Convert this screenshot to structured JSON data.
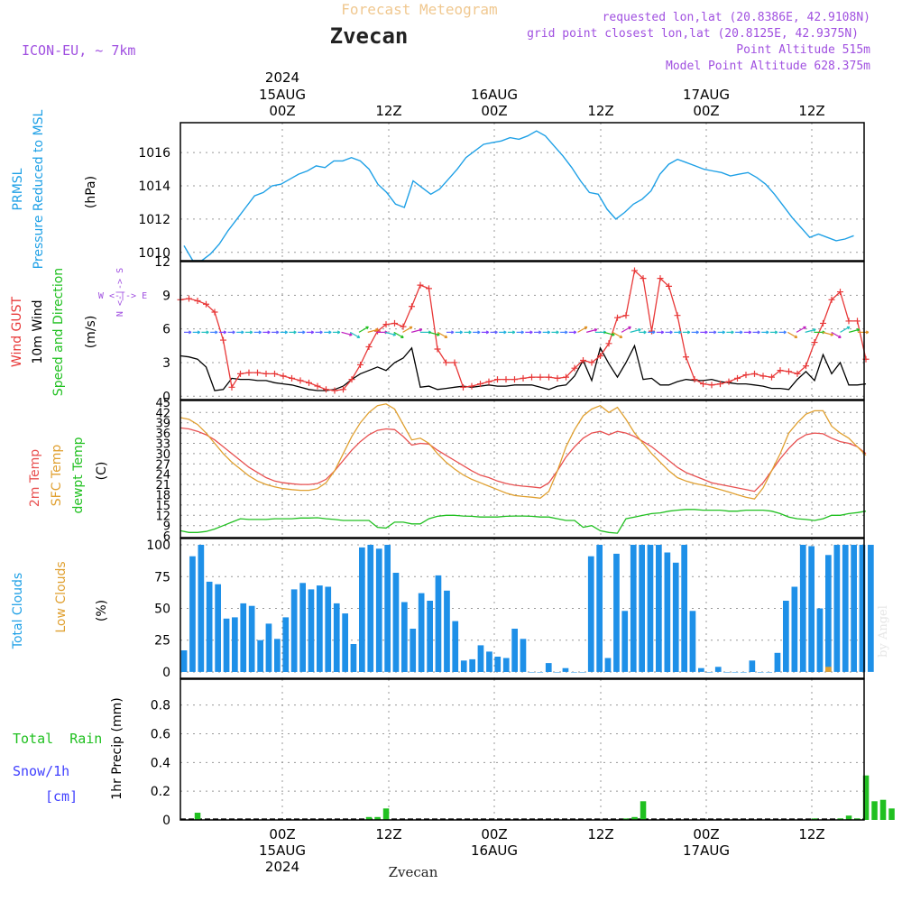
{
  "header": {
    "title": "Forecast Meteogram",
    "location": "Zvecan",
    "model": "ICON-EU, ~ 7km",
    "requested": "requested lon,lat (20.8386E, 42.9108N)",
    "grid_point": "grid point closest lon,lat (20.8125E, 42.9375N)",
    "point_altitude": "Point Altitude 515m",
    "model_altitude": "Model Point Altitude 628.375m",
    "footer_location": "Zvecan",
    "credit": "by Angel"
  },
  "time_axis": {
    "top_year": "2024",
    "top_labels": [
      {
        "line1": "15AUG",
        "line2": "00Z"
      },
      {
        "line1": "",
        "line2": "12Z"
      },
      {
        "line1": "16AUG",
        "line2": "00Z"
      },
      {
        "line1": "",
        "line2": "12Z"
      },
      {
        "line1": "17AUG",
        "line2": "00Z"
      },
      {
        "line1": "",
        "line2": "12Z"
      }
    ],
    "bottom_labels": [
      {
        "line1": "00Z",
        "line2": "15AUG",
        "line3": "2024"
      },
      {
        "line1": "12Z",
        "line2": "",
        "line3": ""
      },
      {
        "line1": "00Z",
        "line2": "16AUG",
        "line3": ""
      },
      {
        "line1": "12Z",
        "line2": "",
        "line3": ""
      },
      {
        "line1": "00Z",
        "line2": "17AUG",
        "line3": ""
      },
      {
        "line1": "12Z",
        "line2": "",
        "line3": ""
      }
    ]
  },
  "panels": {
    "pressure": {
      "label1": "PRMSL",
      "label2": "Pressure Reduced to MSL",
      "unit": "(hPa)"
    },
    "wind": {
      "label1": "Wind GUST",
      "label2": "10m Wind",
      "label3": "Speed and Direction",
      "unit": "(m/s)",
      "compass_ns": "N <-|-> S",
      "compass_we": "W <-|-> E"
    },
    "temp": {
      "label1": "2m Temp",
      "label2": "SFC Temp",
      "label3": "dewpt Temp",
      "unit": "(C)"
    },
    "clouds": {
      "label1": "Total Clouds",
      "label2": "Low Clouds",
      "unit": "(%)"
    },
    "precip": {
      "label1": "Total  Rain",
      "label2": "Snow/1h",
      "label3": "[cm]",
      "unit": "1hr Precip (mm)"
    }
  },
  "colors": {
    "pressure": "#1ea0e6",
    "gust": "#e83838",
    "wind": "#000000",
    "t2m": "#e85050",
    "sfc": "#e0a030",
    "dewpt": "#20c020",
    "total_clouds": "#1e90e8",
    "low_clouds": "#e0a030",
    "rain": "#20c020",
    "snow": "#4040ff",
    "header_title": "#f0c890",
    "header_purple": "#a050e0"
  },
  "chart_data": [
    {
      "type": "line",
      "name": "pressure",
      "x_unit": "hours since 2024-08-14 12Z",
      "ylim": [
        1009.5,
        1017.8
      ],
      "yticks": [
        1010,
        1012,
        1014,
        1016
      ],
      "series": [
        {
          "name": "PRMSL",
          "values": [
            1010.4,
            1009.5,
            1009.5,
            1009.9,
            1010.5,
            1011.3,
            1012.0,
            1012.7,
            1013.4,
            1013.6,
            1014.0,
            1014.1,
            1014.4,
            1014.7,
            1014.9,
            1015.2,
            1015.1,
            1015.5,
            1015.5,
            1015.7,
            1015.5,
            1015.0,
            1014.1,
            1013.6,
            1012.9,
            1012.7,
            1014.3,
            1013.9,
            1013.5,
            1013.8,
            1014.4,
            1015.0,
            1015.7,
            1016.1,
            1016.5,
            1016.6,
            1016.7,
            1016.9,
            1016.8,
            1017.0,
            1017.3,
            1017.0,
            1016.4,
            1015.8,
            1015.1,
            1014.3,
            1013.6,
            1013.5,
            1012.6,
            1012.0,
            1012.4,
            1012.9,
            1013.2,
            1013.7,
            1014.7,
            1015.3,
            1015.6,
            1015.4,
            1015.2,
            1015.0,
            1014.9,
            1014.8,
            1014.6,
            1014.7,
            1014.8,
            1014.5,
            1014.1,
            1013.5,
            1012.8,
            1012.1,
            1011.5,
            1010.9,
            1011.1,
            1010.9,
            1010.7,
            1010.8,
            1011.0
          ]
        }
      ]
    },
    {
      "type": "line",
      "name": "wind",
      "ylim": [
        -0.3,
        12
      ],
      "yticks": [
        0,
        3,
        6,
        9,
        12
      ],
      "series": [
        {
          "name": "Wind GUST",
          "values": [
            8.6,
            8.7,
            8.5,
            8.2,
            7.5,
            5.0,
            0.8,
            2.0,
            2.1,
            2.1,
            2.0,
            2.0,
            1.8,
            1.6,
            1.4,
            1.2,
            0.9,
            0.6,
            0.5,
            0.6,
            1.5,
            2.8,
            4.4,
            5.8,
            6.4,
            6.5,
            6.2,
            8.0,
            9.9,
            9.6,
            4.2,
            3.0,
            3.0,
            0.8,
            0.9,
            1.1,
            1.3,
            1.5,
            1.5,
            1.5,
            1.6,
            1.7,
            1.7,
            1.7,
            1.6,
            1.7,
            2.5,
            3.2,
            3.0,
            3.6,
            4.7,
            7.0,
            7.2,
            11.2,
            10.5,
            5.8,
            10.5,
            9.8,
            7.2,
            3.5,
            1.5,
            1.1,
            1.0,
            1.1,
            1.3,
            1.6,
            1.9,
            2.0,
            1.8,
            1.7,
            2.3,
            2.2,
            2.0,
            2.7,
            4.8,
            6.5,
            8.6,
            9.3,
            6.7,
            6.7,
            3.3
          ]
        },
        {
          "name": "10m Wind",
          "values": [
            3.6,
            3.5,
            3.3,
            2.6,
            0.5,
            0.6,
            1.6,
            1.5,
            1.5,
            1.4,
            1.4,
            1.2,
            1.1,
            1.0,
            0.8,
            0.6,
            0.5,
            0.5,
            0.6,
            0.9,
            1.5,
            2.0,
            2.3,
            2.6,
            2.3,
            3.0,
            3.4,
            4.3,
            0.8,
            0.9,
            0.6,
            0.7,
            0.8,
            0.9,
            0.8,
            0.9,
            1.0,
            0.9,
            0.9,
            1.0,
            1.0,
            1.0,
            0.8,
            0.6,
            0.9,
            1.0,
            1.8,
            3.2,
            1.4,
            4.3,
            2.9,
            1.7,
            3.0,
            4.5,
            1.5,
            1.6,
            1.0,
            1.0,
            1.3,
            1.5,
            1.4,
            1.4,
            1.5,
            1.3,
            1.2,
            1.1,
            1.1,
            1.0,
            0.9,
            0.7,
            0.7,
            0.6,
            1.5,
            2.2,
            1.4,
            3.7,
            2.0,
            3.0,
            1.0,
            1.0,
            1.1
          ]
        }
      ]
    },
    {
      "type": "line",
      "name": "temperature",
      "ylim": [
        5.5,
        45.5
      ],
      "yticks": [
        6,
        9,
        12,
        15,
        18,
        21,
        24,
        27,
        30,
        33,
        36,
        39,
        42,
        45
      ],
      "series": [
        {
          "name": "2m Temp",
          "values": [
            37.5,
            37.2,
            36.5,
            35.5,
            34.0,
            32.0,
            30.0,
            28.0,
            26.0,
            24.5,
            23.0,
            22.0,
            21.5,
            21.2,
            21.0,
            21.0,
            21.3,
            22.5,
            25.0,
            28.0,
            31.0,
            33.5,
            35.5,
            36.8,
            37.2,
            37.0,
            35.0,
            32.5,
            33.0,
            32.8,
            31.0,
            29.5,
            28.0,
            26.5,
            25.0,
            23.7,
            23.0,
            22.0,
            21.3,
            20.8,
            20.5,
            20.3,
            20.0,
            21.5,
            25.0,
            29.0,
            32.0,
            34.5,
            36.0,
            36.5,
            35.5,
            36.5,
            36.0,
            35.0,
            33.5,
            32.0,
            30.0,
            28.0,
            26.0,
            24.5,
            23.5,
            22.5,
            21.5,
            21.0,
            20.5,
            20.0,
            19.5,
            19.0,
            21.5,
            25.0,
            28.5,
            31.5,
            34.0,
            35.5,
            36.0,
            35.8,
            34.5,
            33.5,
            33.0,
            32.0,
            30.0
          ]
        },
        {
          "name": "SFC Temp",
          "values": [
            40.5,
            40.0,
            38.5,
            36.0,
            33.0,
            30.0,
            27.5,
            25.5,
            23.5,
            22.0,
            21.0,
            20.3,
            19.8,
            19.5,
            19.3,
            19.3,
            19.8,
            21.5,
            25.0,
            30.0,
            35.0,
            39.0,
            42.0,
            44.0,
            44.5,
            43.0,
            38.5,
            34.0,
            34.5,
            33.0,
            30.0,
            27.5,
            25.5,
            23.8,
            22.5,
            21.5,
            20.5,
            19.5,
            18.5,
            17.8,
            17.5,
            17.3,
            17.0,
            19.0,
            25.0,
            32.0,
            37.0,
            41.0,
            43.0,
            44.0,
            42.0,
            43.5,
            40.0,
            36.0,
            33.0,
            30.0,
            27.5,
            25.0,
            23.0,
            22.0,
            21.3,
            20.8,
            20.2,
            19.5,
            18.8,
            18.0,
            17.3,
            16.8,
            20.0,
            25.0,
            30.0,
            36.0,
            39.0,
            41.5,
            42.5,
            42.5,
            38.0,
            36.0,
            34.5,
            32.0,
            29.5
          ]
        },
        {
          "name": "dewpt Temp",
          "values": [
            7.5,
            7.0,
            7.0,
            7.3,
            8.0,
            9.0,
            10.0,
            11.0,
            10.8,
            10.8,
            10.8,
            11.0,
            11.0,
            11.0,
            11.2,
            11.2,
            11.3,
            11.0,
            10.8,
            10.5,
            10.5,
            10.5,
            10.5,
            8.5,
            8.3,
            10.0,
            10.0,
            9.5,
            9.5,
            11.0,
            11.7,
            12.0,
            12.0,
            11.8,
            11.7,
            11.5,
            11.5,
            11.5,
            11.7,
            11.8,
            11.8,
            11.7,
            11.5,
            11.5,
            11.0,
            10.5,
            10.5,
            8.5,
            9.0,
            7.5,
            7.0,
            6.8,
            11.0,
            11.5,
            12.0,
            12.5,
            12.7,
            13.2,
            13.5,
            13.7,
            13.7,
            13.5,
            13.5,
            13.5,
            13.2,
            13.2,
            13.5,
            13.5,
            13.5,
            13.2,
            12.5,
            11.5,
            11.0,
            10.8,
            10.5,
            11.0,
            12.0,
            12.0,
            12.5,
            12.8,
            13.2
          ]
        }
      ]
    },
    {
      "type": "bar",
      "name": "clouds",
      "ylim": [
        -5,
        105
      ],
      "yticks": [
        0,
        25,
        50,
        75,
        100
      ],
      "series": [
        {
          "name": "Total Clouds",
          "values": [
            17,
            91,
            100,
            71,
            69,
            42,
            43,
            54,
            52,
            25,
            38,
            26,
            43,
            65,
            70,
            65,
            68,
            67,
            54,
            46,
            22,
            98,
            100,
            97,
            100,
            78,
            55,
            34,
            62,
            56,
            76,
            64,
            40,
            9,
            10,
            21,
            16,
            12,
            11,
            34,
            26,
            0,
            0,
            7,
            0,
            3,
            0,
            0,
            91,
            100,
            11,
            93,
            48,
            100,
            100,
            100,
            100,
            94,
            86,
            100,
            48,
            3,
            0,
            4,
            0,
            0,
            0,
            9,
            0,
            0,
            15,
            56,
            67,
            100,
            99,
            50,
            92,
            100,
            100,
            100,
            100,
            100
          ]
        },
        {
          "name": "Low Clouds",
          "values": [
            0,
            0,
            0,
            0,
            0,
            0,
            0,
            0,
            0,
            0,
            0,
            0,
            0,
            0,
            0,
            0,
            0,
            0,
            0,
            0,
            0,
            0,
            0,
            0,
            0,
            0,
            0,
            0,
            0,
            0,
            0,
            0,
            0,
            0,
            0,
            0,
            0,
            0,
            0,
            0,
            0,
            0,
            0,
            0,
            0,
            0,
            0,
            0,
            0,
            0,
            0,
            0,
            0,
            0,
            0,
            0,
            0,
            0,
            0,
            0,
            0,
            0,
            0,
            0,
            0,
            0,
            0,
            0,
            0,
            0,
            0,
            0,
            0,
            0,
            0,
            0,
            4,
            0,
            0,
            0,
            0,
            0
          ]
        }
      ]
    },
    {
      "type": "bar",
      "name": "precip",
      "ylim": [
        0,
        0.98
      ],
      "yticks": [
        0,
        0.2,
        0.4,
        0.6,
        0.8
      ],
      "series": [
        {
          "name": "Total Rain",
          "values": [
            0,
            0,
            0.05,
            0,
            0,
            0,
            0,
            0,
            0,
            0,
            0,
            0,
            0,
            0,
            0,
            0,
            0,
            0,
            0,
            0,
            0,
            0,
            0.02,
            0.02,
            0.08,
            0,
            0,
            0,
            0,
            0,
            0,
            0,
            0,
            0,
            0,
            0,
            0,
            0,
            0,
            0,
            0,
            0,
            0,
            0,
            0,
            0,
            0,
            0,
            0,
            0,
            0,
            0,
            0.01,
            0.02,
            0.13,
            0,
            0,
            0,
            0,
            0,
            0,
            0,
            0,
            0,
            0,
            0,
            0,
            0,
            0,
            0,
            0,
            0,
            0,
            0,
            0.01,
            0,
            0,
            0.01,
            0.03,
            0.01,
            0.31,
            0.13,
            0.14,
            0.08
          ]
        }
      ]
    }
  ]
}
